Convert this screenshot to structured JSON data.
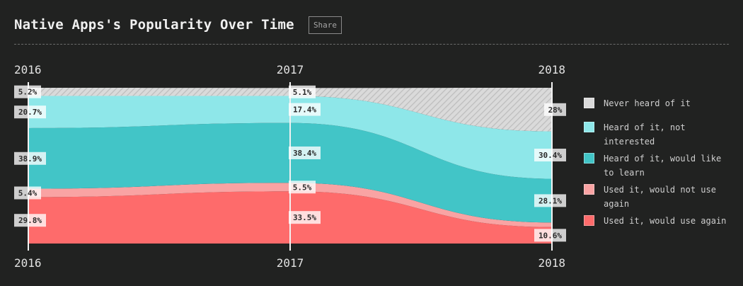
{
  "header": {
    "title": "Native Apps's Popularity Over Time",
    "share_label": "Share"
  },
  "chart_data": {
    "type": "area",
    "stacked": true,
    "normalized": true,
    "x": [
      "2016",
      "2017",
      "2018"
    ],
    "series": [
      {
        "name": "Used it, would use again",
        "color": "#fe6b6b",
        "values": [
          29.8,
          33.5,
          10.6
        ],
        "labels": [
          "29.8%",
          "33.5%",
          "10.6%"
        ]
      },
      {
        "name": "Used it, would not use again",
        "color": "#f9a3a3",
        "values": [
          5.4,
          5.5,
          2.9
        ],
        "labels": [
          "5.4%",
          "5.5%",
          ""
        ]
      },
      {
        "name": "Heard of it, would like to learn",
        "color": "#42c5c7",
        "values": [
          38.9,
          38.4,
          28.1
        ],
        "labels": [
          "38.9%",
          "38.4%",
          "28.1%"
        ]
      },
      {
        "name": "Heard of it, not interested",
        "color": "#8ee7e9",
        "values": [
          20.7,
          17.4,
          30.4
        ],
        "labels": [
          "20.7%",
          "17.4%",
          "30.4%"
        ]
      },
      {
        "name": "Never heard of it",
        "color": "#dadada",
        "hatched": true,
        "values": [
          5.2,
          5.1,
          28
        ],
        "labels": [
          "5.2%",
          "5.1%",
          "28%"
        ]
      }
    ],
    "ylim": [
      0,
      100
    ]
  },
  "legend": {
    "items": [
      {
        "label": "Never heard of it",
        "color": "#dadada"
      },
      {
        "label": "Heard of it, not interested",
        "color": "#8ee7e9"
      },
      {
        "label": "Heard of it, would like to learn",
        "color": "#42c5c7"
      },
      {
        "label": "Used it, would not use again",
        "color": "#f9a3a3"
      },
      {
        "label": "Used it, would use again",
        "color": "#fe6b6b"
      }
    ]
  }
}
